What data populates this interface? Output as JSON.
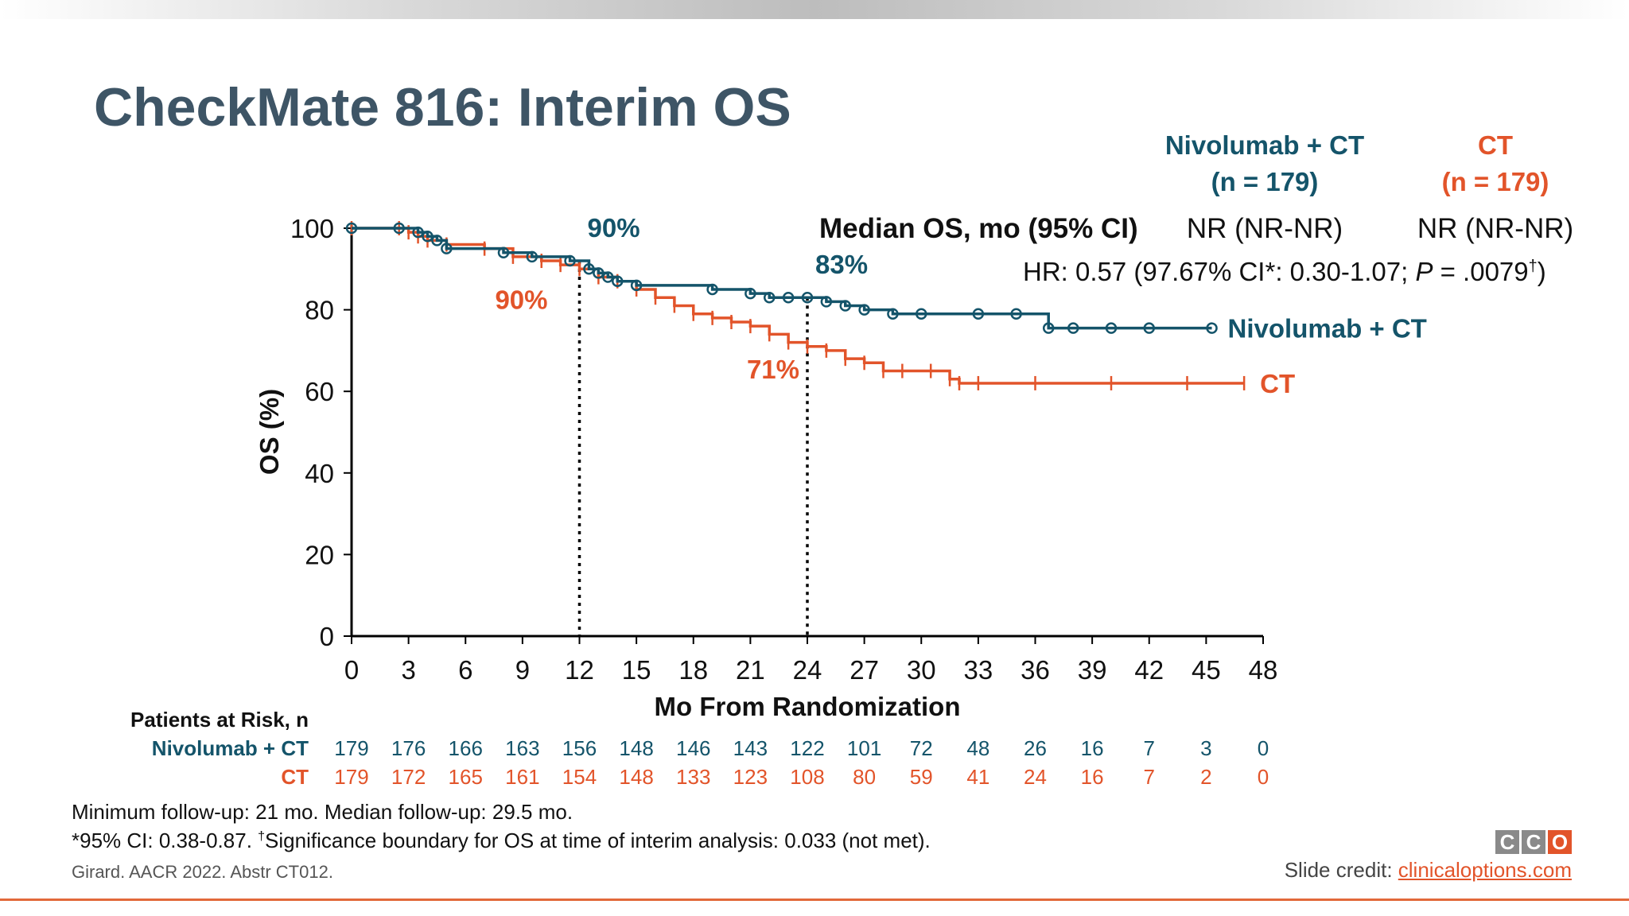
{
  "slide": {
    "title": "CheckMate 816: Interim OS",
    "arms": {
      "nivo": {
        "line1": "Nivolumab + CT",
        "line2": "(n = 179)"
      },
      "ct": {
        "line1": "CT",
        "line2": "(n = 179)"
      }
    },
    "median_label": "Median OS, mo (95% CI)",
    "median_nivo": "NR (NR-NR)",
    "median_ct": "NR (NR-NR)",
    "hr": {
      "prefix": "HR: 0.57 (97.67% CI*: 0.30-1.07; ",
      "p": "P",
      "mid": " = .0079",
      "dagger": "†",
      "suffix": ")"
    },
    "footnote1": "Minimum follow-up: 21 mo. Median follow-up: 29.5 mo.",
    "footnote2_pre": "*95% CI: 0.38-0.87. ",
    "footnote2_dagger": "†",
    "footnote2_post": "Significance boundary for OS at time of interim analysis: 0.033 (not met).",
    "citation": "Girard. AACR 2022. Abstr CT012.",
    "credit_label": "Slide credit: ",
    "credit_link": "clinicaloptions.com",
    "logo": [
      "C",
      "C",
      "O"
    ],
    "colors": {
      "nivo": "#14546a",
      "ct": "#e2542a",
      "title": "#3e5566"
    }
  },
  "risk_table": {
    "header": "Patients at Risk, n",
    "nivo_label": "Nivolumab + CT",
    "ct_label": "CT",
    "nivo": [
      "179",
      "176",
      "166",
      "163",
      "156",
      "148",
      "146",
      "143",
      "122",
      "101",
      "72",
      "48",
      "26",
      "16",
      "7",
      "3",
      "0"
    ],
    "ct": [
      "179",
      "172",
      "165",
      "161",
      "154",
      "148",
      "133",
      "123",
      "108",
      "80",
      "59",
      "41",
      "24",
      "16",
      "7",
      "2",
      "0"
    ]
  },
  "chart_data": {
    "type": "line",
    "subtype": "kaplan-meier",
    "xlabel": "Mo From Randomization",
    "ylabel": "OS (%)",
    "xlim": [
      0,
      48
    ],
    "ylim": [
      0,
      100
    ],
    "xticks": [
      0,
      3,
      6,
      9,
      12,
      15,
      18,
      21,
      24,
      27,
      30,
      33,
      36,
      39,
      42,
      45,
      48
    ],
    "yticks": [
      0,
      20,
      40,
      60,
      80,
      100
    ],
    "grid": false,
    "reference_lines": [
      12,
      24
    ],
    "series": [
      {
        "name": "Nivolumab + CT",
        "color": "#14546a",
        "marker": "circle",
        "x": [
          0,
          2.5,
          3.5,
          4,
          4.5,
          5,
          8,
          9.5,
          11.5,
          12.5,
          13,
          13.5,
          14,
          15,
          19,
          21,
          22,
          23,
          24,
          25,
          26,
          27,
          28.5,
          30,
          33,
          35,
          36.7,
          38,
          40,
          42,
          45.3
        ],
        "y": [
          100,
          100,
          99,
          98,
          97,
          95,
          94,
          93,
          92,
          90,
          89,
          88,
          87,
          86,
          85,
          84,
          83,
          83,
          83,
          82,
          81,
          80,
          79,
          79,
          79,
          79,
          75.5,
          75.5,
          75.5,
          75.5,
          75.5
        ],
        "end_label": "Nivolumab + CT",
        "annotations": [
          {
            "x": 12,
            "label": "90%"
          },
          {
            "x": 24,
            "label": "83%"
          }
        ]
      },
      {
        "name": "CT",
        "color": "#e2542a",
        "marker": "tick",
        "x": [
          0,
          2.5,
          3,
          3.5,
          4,
          5,
          7,
          8.5,
          10,
          11,
          12,
          13,
          14,
          15,
          16,
          17,
          18,
          19,
          20,
          21,
          22,
          23,
          24,
          25,
          26,
          27,
          28,
          29,
          30.5,
          31.5,
          32,
          33,
          36,
          40,
          44,
          47
        ],
        "y": [
          100,
          100,
          99,
          98,
          97,
          96,
          95,
          93,
          92,
          91,
          90,
          88,
          87,
          85,
          83,
          81,
          79,
          78,
          77,
          76,
          74,
          72,
          71,
          70,
          68,
          67,
          65,
          65,
          65,
          63,
          62,
          62,
          62,
          62,
          62,
          62
        ],
        "end_label": "CT",
        "annotations": [
          {
            "x": 12,
            "label": "90%"
          },
          {
            "x": 24,
            "label": "71%"
          }
        ]
      }
    ]
  }
}
